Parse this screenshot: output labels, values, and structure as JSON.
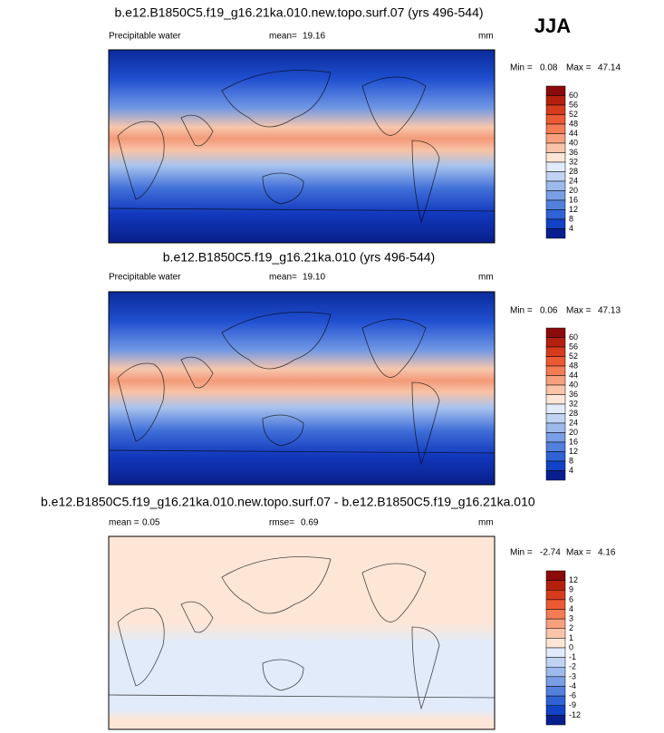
{
  "season": "JJA",
  "panels": [
    {
      "title": "b.e12.B1850C5.f19_g16.21ka.010.new.topo.surf.07 (yrs 496-544)",
      "left_label": "Precipitable water",
      "mean_label": "mean=",
      "mean": "19.16",
      "units": "mm",
      "min_label": "Min =",
      "min": "0.08",
      "max_label": "Max =",
      "max": "47.14",
      "colorbar_labels": [
        60,
        56,
        52,
        48,
        44,
        40,
        36,
        32,
        28,
        24,
        20,
        16,
        12,
        8,
        4
      ],
      "colorbar_colors": [
        "#8c0a0a",
        "#b5200e",
        "#d63b1c",
        "#ec5a33",
        "#f47c55",
        "#f8a07e",
        "#fbc4a8",
        "#fde6d6",
        "#e1ebfa",
        "#c0d3f3",
        "#9cbaec",
        "#789ee5",
        "#5280dd",
        "#2f62d4",
        "#1242c6",
        "#08208f"
      ]
    },
    {
      "title": "b.e12.B1850C5.f19_g16.21ka.010 (yrs 496-544)",
      "left_label": "Precipitable water",
      "mean_label": "mean=",
      "mean": "19.10",
      "units": "mm",
      "min_label": "Min =",
      "min": "0.06",
      "max_label": "Max =",
      "max": "47.13",
      "colorbar_labels": [
        60,
        56,
        52,
        48,
        44,
        40,
        36,
        32,
        28,
        24,
        20,
        16,
        12,
        8,
        4
      ],
      "colorbar_colors": [
        "#8c0a0a",
        "#b5200e",
        "#d63b1c",
        "#ec5a33",
        "#f47c55",
        "#f8a07e",
        "#fbc4a8",
        "#fde6d6",
        "#e1ebfa",
        "#c0d3f3",
        "#9cbaec",
        "#789ee5",
        "#5280dd",
        "#2f62d4",
        "#1242c6",
        "#08208f"
      ]
    },
    {
      "title": "b.e12.B1850C5.f19_g16.21ka.010.new.topo.surf.07 - b.e12.B1850C5.f19_g16.21ka.010",
      "mean_label": "mean =",
      "mean": "0.05",
      "rmse_label": "rmse=",
      "rmse": "0.69",
      "units": "mm",
      "min_label": "Min =",
      "min": "-2.74",
      "max_label": "Max =",
      "max": "4.16",
      "colorbar_labels": [
        12,
        9,
        6,
        4,
        3,
        2,
        1,
        0,
        -1,
        -2,
        -3,
        -4,
        -6,
        -9,
        -12
      ],
      "colorbar_colors": [
        "#8c0a0a",
        "#b5200e",
        "#d63b1c",
        "#ec5a33",
        "#f47c55",
        "#f8a07e",
        "#fbc4a8",
        "#fde6d6",
        "#e1ebfa",
        "#c0d3f3",
        "#9cbaec",
        "#789ee5",
        "#5280dd",
        "#2f62d4",
        "#1242c6",
        "#08208f"
      ]
    }
  ]
}
